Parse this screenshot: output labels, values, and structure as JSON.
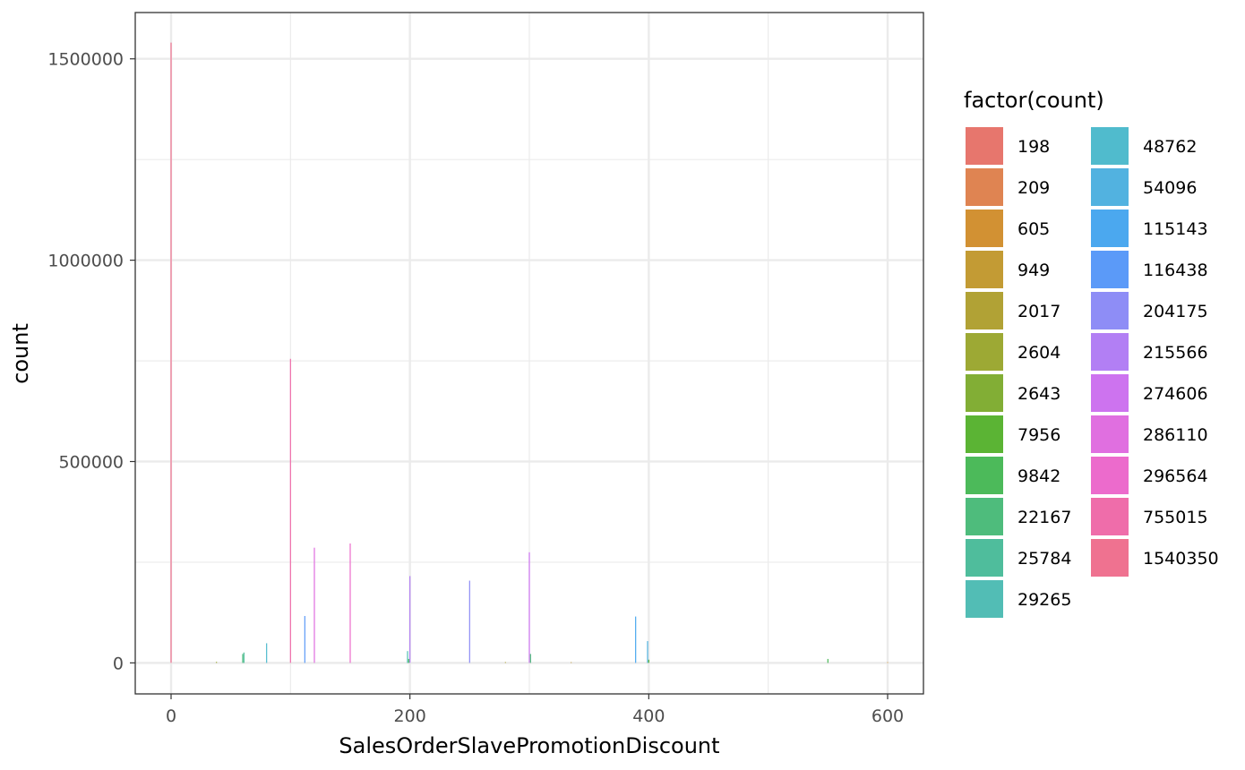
{
  "chart_data": {
    "type": "bar",
    "xlabel": "SalesOrderSlavePromotionDiscount",
    "ylabel": "count",
    "xlim": [
      -30,
      630
    ],
    "ylim": [
      -77000,
      1615000
    ],
    "x_ticks": [
      0,
      200,
      400,
      600
    ],
    "y_ticks": [
      0,
      500000,
      1000000,
      1500000
    ],
    "x_tick_labels": [
      "0",
      "200",
      "400",
      "600"
    ],
    "y_tick_labels": [
      "0",
      "500000",
      "1000000",
      "1500000"
    ],
    "grid": true,
    "legend": {
      "title": "factor(count)",
      "position": "right",
      "columns": 2,
      "items": [
        {
          "label": "198",
          "color": "#E7766D"
        },
        {
          "label": "209",
          "color": "#DF8452"
        },
        {
          "label": "605",
          "color": "#D29133"
        },
        {
          "label": "949",
          "color": "#C39B34"
        },
        {
          "label": "2017",
          "color": "#B1A235"
        },
        {
          "label": "2604",
          "color": "#9DA934"
        },
        {
          "label": "2643",
          "color": "#82AE35"
        },
        {
          "label": "7956",
          "color": "#5BB434"
        },
        {
          "label": "9842",
          "color": "#4CBA5A"
        },
        {
          "label": "22167",
          "color": "#4EBC7C"
        },
        {
          "label": "25784",
          "color": "#4FBD9C"
        },
        {
          "label": "29265",
          "color": "#52BDB5"
        },
        {
          "label": "48762",
          "color": "#50BBCD"
        },
        {
          "label": "54096",
          "color": "#52B2E0"
        },
        {
          "label": "115143",
          "color": "#4BA8EF"
        },
        {
          "label": "116438",
          "color": "#5B9AF8"
        },
        {
          "label": "204175",
          "color": "#8E8DF6"
        },
        {
          "label": "215566",
          "color": "#B27FF4"
        },
        {
          "label": "274606",
          "color": "#CD73EF"
        },
        {
          "label": "286110",
          "color": "#E06FE0"
        },
        {
          "label": "296564",
          "color": "#EC6BCC"
        },
        {
          "label": "755015",
          "color": "#EF6DAA"
        },
        {
          "label": "1540350",
          "color": "#EF7290"
        }
      ]
    },
    "bars": [
      {
        "x": 0,
        "y": 1540350,
        "color": "#EF7290"
      },
      {
        "x": 38,
        "y": 2604,
        "color": "#9DA934"
      },
      {
        "x": 60,
        "y": 22167,
        "color": "#4EBC7C"
      },
      {
        "x": 61,
        "y": 25784,
        "color": "#4FBD9C"
      },
      {
        "x": 80,
        "y": 48762,
        "color": "#50BBCD"
      },
      {
        "x": 100,
        "y": 755015,
        "color": "#EF6DAA"
      },
      {
        "x": 112,
        "y": 116438,
        "color": "#5B9AF8"
      },
      {
        "x": 120,
        "y": 286110,
        "color": "#E06FE0"
      },
      {
        "x": 150,
        "y": 296564,
        "color": "#EC6BCC"
      },
      {
        "x": 198,
        "y": 29265,
        "color": "#52BDB5"
      },
      {
        "x": 199,
        "y": 9842,
        "color": "#4CBA5A"
      },
      {
        "x": 200,
        "y": 215566,
        "color": "#B27FF4"
      },
      {
        "x": 250,
        "y": 204175,
        "color": "#8E8DF6"
      },
      {
        "x": 280,
        "y": 2017,
        "color": "#B1A235"
      },
      {
        "x": 300,
        "y": 274606,
        "color": "#CD73EF"
      },
      {
        "x": 301,
        "y": 22167,
        "color": "#4EBC7C"
      },
      {
        "x": 335,
        "y": 949,
        "color": "#C39B34"
      },
      {
        "x": 389,
        "y": 115143,
        "color": "#4BA8EF"
      },
      {
        "x": 399,
        "y": 54096,
        "color": "#52B2E0"
      },
      {
        "x": 400,
        "y": 7956,
        "color": "#5BB434"
      },
      {
        "x": 550,
        "y": 9842,
        "color": "#4CBA5A"
      },
      {
        "x": 600,
        "y": 605,
        "color": "#D29133"
      }
    ]
  }
}
